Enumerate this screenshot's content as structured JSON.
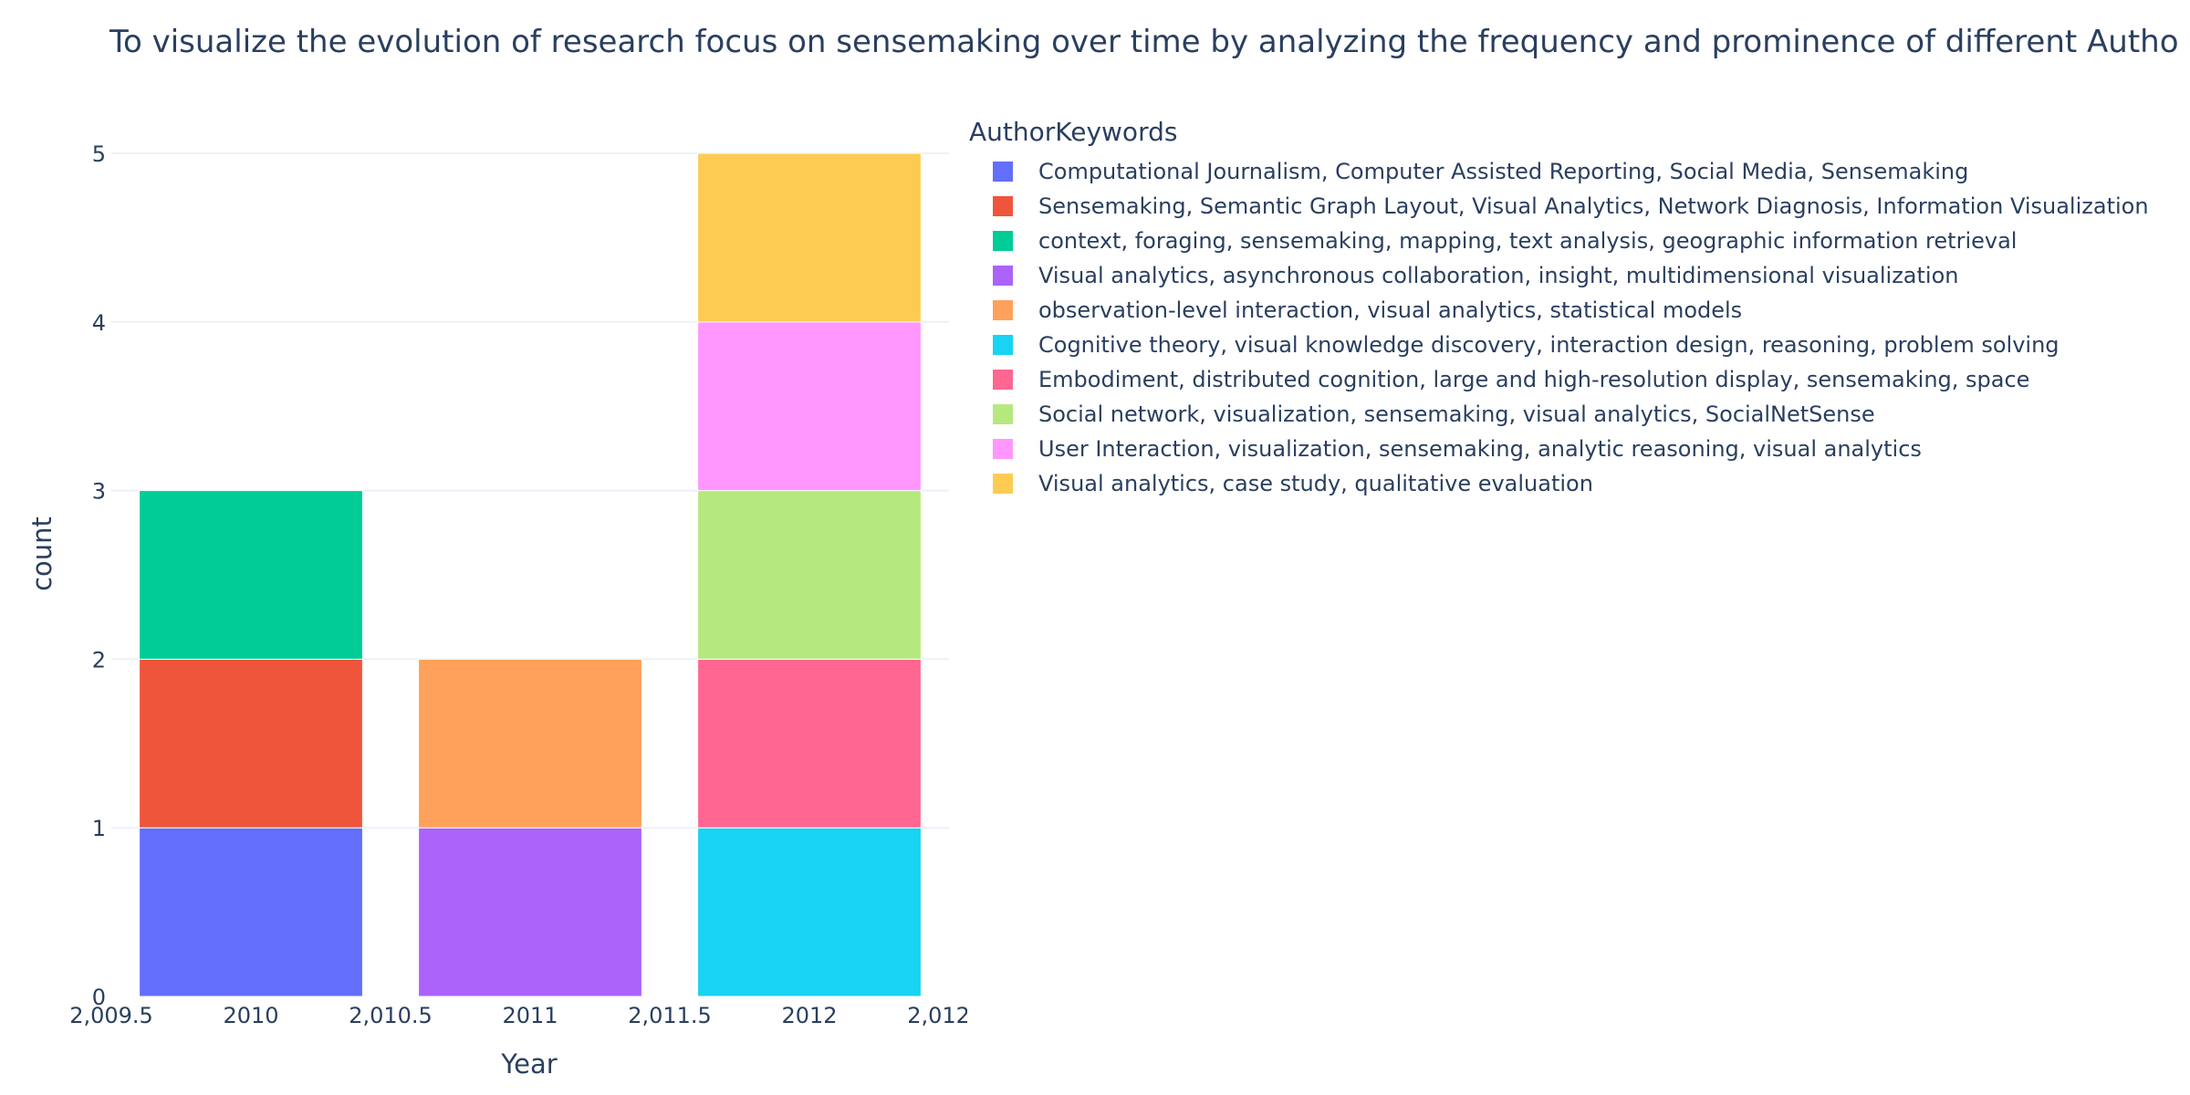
{
  "chart_data": {
    "type": "bar",
    "barmode": "stack",
    "title": "To visualize the evolution of research focus on sensemaking over time by analyzing the frequency and prominence of different Autho",
    "xlabel": "Year",
    "ylabel": "count",
    "legend_title": "AuthorKeywords",
    "legend_placement": "right",
    "grid": true,
    "xlim": [
      2009.5,
      2012.5
    ],
    "ylim": [
      0,
      5
    ],
    "x_ticks": [
      "2,009.5",
      "2010",
      "2,010.5",
      "2011",
      "2,011.5",
      "2012",
      "2,012.5"
    ],
    "y_ticks": [
      "0",
      "1",
      "2",
      "3",
      "4",
      "5"
    ],
    "categories": [
      2010,
      2011,
      2012
    ],
    "series": [
      {
        "name": "Computational Journalism, Computer Assisted Reporting, Social Media, Sensemaking",
        "color": "#636efa",
        "values": [
          1,
          0,
          0
        ]
      },
      {
        "name": "Sensemaking, Semantic Graph Layout, Visual Analytics, Network Diagnosis, Information Visualization",
        "color": "#ef553b",
        "values": [
          1,
          0,
          0
        ]
      },
      {
        "name": "context, foraging, sensemaking, mapping, text analysis, geographic information retrieval",
        "color": "#00cc96",
        "values": [
          1,
          0,
          0
        ]
      },
      {
        "name": "Visual analytics, asynchronous collaboration, insight, multidimensional visualization",
        "color": "#ab63fa",
        "values": [
          0,
          1,
          0
        ]
      },
      {
        "name": "observation-level interaction, visual analytics, statistical models",
        "color": "#ffa15a",
        "values": [
          0,
          1,
          0
        ]
      },
      {
        "name": "Cognitive theory, visual knowledge discovery, interaction design, reasoning, problem solving",
        "color": "#19d3f3",
        "values": [
          0,
          0,
          1
        ]
      },
      {
        "name": "Embodiment, distributed cognition, large and high-resolution display, sensemaking, space",
        "color": "#ff6692",
        "values": [
          0,
          0,
          1
        ]
      },
      {
        "name": "Social network, visualization, sensemaking, visual analytics, SocialNetSense",
        "color": "#b6e880",
        "values": [
          0,
          0,
          1
        ]
      },
      {
        "name": "User Interaction, visualization, sensemaking, analytic reasoning, visual analytics",
        "color": "#ff97ff",
        "values": [
          0,
          0,
          1
        ]
      },
      {
        "name": "Visual analytics, case study, qualitative evaluation",
        "color": "#fecb52",
        "values": [
          0,
          0,
          1
        ]
      }
    ]
  }
}
